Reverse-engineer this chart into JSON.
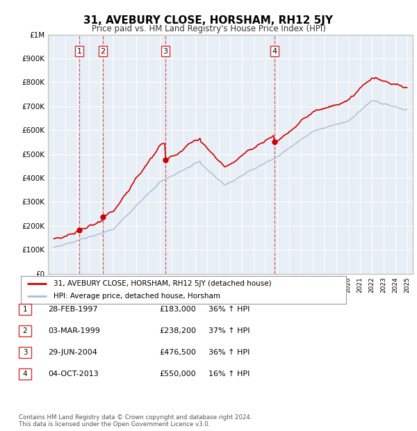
{
  "title": "31, AVEBURY CLOSE, HORSHAM, RH12 5JY",
  "subtitle": "Price paid vs. HM Land Registry's House Price Index (HPI)",
  "legend_line1": "31, AVEBURY CLOSE, HORSHAM, RH12 5JY (detached house)",
  "legend_line2": "HPI: Average price, detached house, Horsham",
  "sale_color": "#cc0000",
  "hpi_color": "#aabbd4",
  "plot_bg": "#e8eef5",
  "footer": "Contains HM Land Registry data © Crown copyright and database right 2024.\nThis data is licensed under the Open Government Licence v3.0.",
  "sales": [
    {
      "label": "1",
      "date": "1997-02-28",
      "price": 183000,
      "pct": "36%",
      "x": 1997.16
    },
    {
      "label": "2",
      "date": "1999-03-03",
      "price": 238200,
      "pct": "37%",
      "x": 1999.17
    },
    {
      "label": "3",
      "date": "2004-06-29",
      "price": 476500,
      "pct": "36%",
      "x": 2004.49
    },
    {
      "label": "4",
      "date": "2013-10-04",
      "price": 550000,
      "pct": "16%",
      "x": 2013.75
    }
  ],
  "table_rows": [
    [
      "1",
      "28-FEB-1997",
      "£183,000",
      "36% ↑ HPI"
    ],
    [
      "2",
      "03-MAR-1999",
      "£238,200",
      "37% ↑ HPI"
    ],
    [
      "3",
      "29-JUN-2004",
      "£476,500",
      "36% ↑ HPI"
    ],
    [
      "4",
      "04-OCT-2013",
      "£550,000",
      "16% ↑ HPI"
    ]
  ],
  "ylim": [
    0,
    1000000
  ],
  "yticks": [
    0,
    100000,
    200000,
    300000,
    400000,
    500000,
    600000,
    700000,
    800000,
    900000,
    1000000
  ],
  "ytick_labels": [
    "£0",
    "£100K",
    "£200K",
    "£300K",
    "£400K",
    "£500K",
    "£600K",
    "£700K",
    "£800K",
    "£900K",
    "£1M"
  ],
  "xlim_start": 1994.5,
  "xlim_end": 2025.5
}
